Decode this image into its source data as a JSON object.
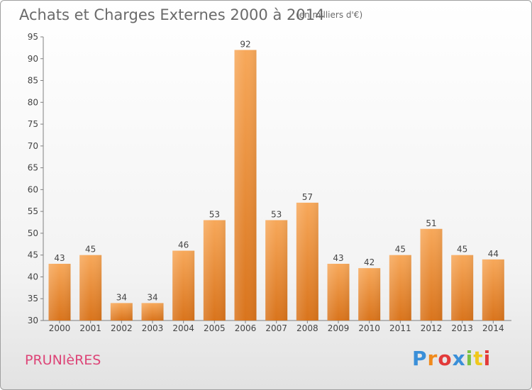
{
  "header": {
    "title": "Achats et Charges Externes 2000 à 2014",
    "unit": "(en milliers d'€)"
  },
  "footer": {
    "town": "PRUNIèRES",
    "logo_letters": [
      "P",
      "r",
      "o",
      "x",
      "i",
      "t",
      "i"
    ],
    "logo_colors": [
      "#3a8fd8",
      "#f08a1c",
      "#e23a3a",
      "#3a8fd8",
      "#7cc242",
      "#f0c81c",
      "#e23a3a"
    ]
  },
  "colors": {
    "bar_top": "#f7a85a",
    "bar_bottom": "#d9741c",
    "axis": "#808080",
    "text": "#444444"
  },
  "chart_data": {
    "type": "bar",
    "categories": [
      "2000",
      "2001",
      "2002",
      "2003",
      "2004",
      "2005",
      "2006",
      "2007",
      "2008",
      "2009",
      "2010",
      "2011",
      "2012",
      "2013",
      "2014"
    ],
    "values": [
      43,
      45,
      34,
      34,
      46,
      53,
      92,
      53,
      57,
      43,
      42,
      45,
      51,
      45,
      44
    ],
    "data_labels": [
      "43",
      "45",
      "34",
      "34",
      "46",
      "53",
      "92",
      "53",
      "57",
      "43",
      "42",
      "45",
      "51",
      "45",
      "44"
    ],
    "ylim": [
      30,
      95
    ],
    "yticks": [
      30,
      35,
      40,
      45,
      50,
      55,
      60,
      65,
      70,
      75,
      80,
      85,
      90,
      95
    ],
    "grid": false
  }
}
